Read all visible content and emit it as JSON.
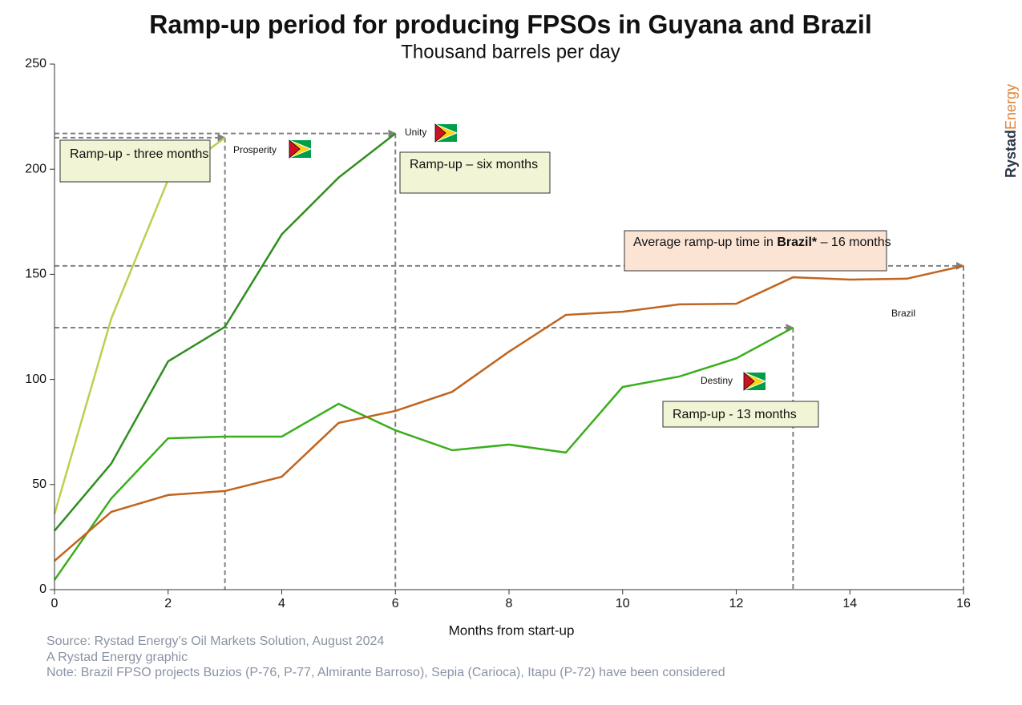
{
  "chart_data": {
    "type": "line",
    "title": "Ramp-up period for producing FPSOs in Guyana and Brazil",
    "subtitle": "Thousand barrels per day",
    "x_label": "Months from start-up",
    "x": [
      0,
      1,
      2,
      3,
      4,
      5,
      6,
      7,
      8,
      9,
      10,
      11,
      12,
      13,
      14,
      15,
      16
    ],
    "xlim": [
      0,
      16
    ],
    "xticks": [
      0,
      2,
      4,
      6,
      8,
      10,
      12,
      14,
      16
    ],
    "ylim": [
      0,
      250
    ],
    "yticks": [
      0,
      50,
      100,
      150,
      200,
      250
    ],
    "grid": false,
    "series": [
      {
        "name": "Prosperity",
        "color": "#b8d14f",
        "values": [
          36,
          129,
          195,
          215,
          null,
          null,
          null,
          null,
          null,
          null,
          null,
          null,
          null,
          null,
          null,
          null,
          null
        ]
      },
      {
        "name": "Unity",
        "color": "#2f8f1f",
        "values": [
          28,
          60,
          108.6,
          125,
          169,
          196,
          217,
          null,
          null,
          null,
          null,
          null,
          null,
          null,
          null,
          null,
          null
        ]
      },
      {
        "name": "Destiny",
        "color": "#3aae1c",
        "values": [
          4.6,
          43.4,
          72,
          72.8,
          72.8,
          88.4,
          75.8,
          66.3,
          69,
          65.2,
          96.4,
          101.4,
          110,
          124.6,
          null,
          null,
          null
        ]
      },
      {
        "name": "Brazil",
        "color": "#c0651f",
        "values": [
          13.7,
          37,
          45,
          46.9,
          53.7,
          79.3,
          85,
          94.1,
          113.2,
          130.7,
          132.2,
          135.7,
          136,
          148.6,
          147.5,
          147.9,
          154
        ]
      }
    ],
    "annotations": [
      {
        "text": "Ramp-up - three months"
      },
      {
        "text": "Ramp-up – six months"
      },
      {
        "parts": [
          "Average ramp-up time in ",
          "Brazil*",
          " – 16 months"
        ]
      },
      {
        "text": "Ramp-up - 13 months"
      }
    ],
    "logo": [
      "Rystad",
      "Energy"
    ],
    "notes": [
      "Source: Rystad Energy’s Oil Markets Solution, August 2024",
      "A Rystad Energy graphic",
      "Note: Brazil FPSO projects Buzios (P-76, P-77, Almirante Barroso), Sepia (Carioca), Itapu (P-72) have been considered"
    ]
  }
}
